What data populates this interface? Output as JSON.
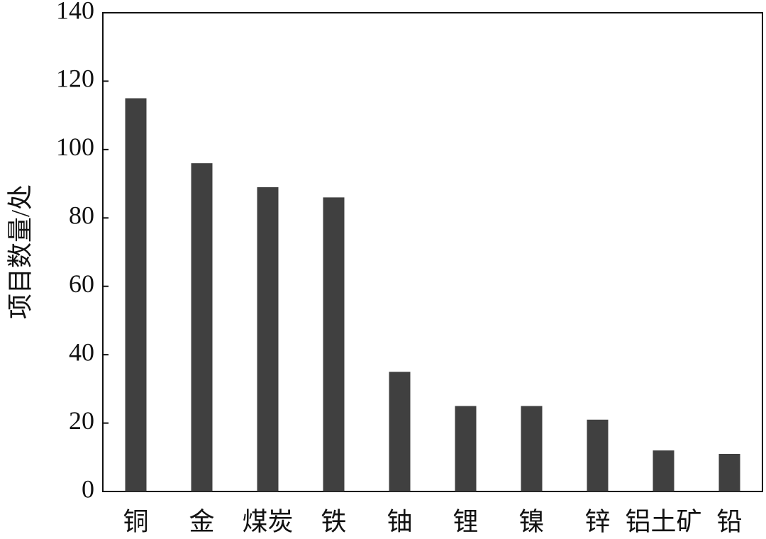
{
  "chart_data": {
    "type": "bar",
    "y_label": "项目数量/处",
    "categories": [
      "铜",
      "金",
      "煤炭",
      "铁",
      "铀",
      "锂",
      "镍",
      "锌",
      "铝土矿",
      "铅"
    ],
    "values": [
      115,
      96,
      89,
      86,
      35,
      25,
      25,
      21,
      12,
      11
    ],
    "color": "#404040",
    "ylim": [
      0,
      140
    ],
    "yticks": [
      0,
      20,
      40,
      60,
      80,
      100,
      120,
      140
    ],
    "grid": false
  }
}
